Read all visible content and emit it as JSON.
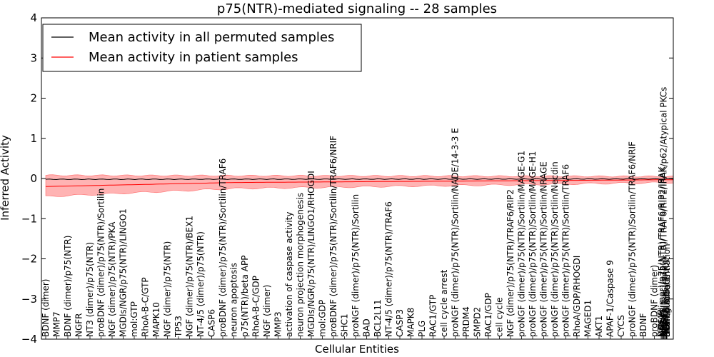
{
  "chart_data": {
    "type": "line",
    "title": "p75(NTR)-mediated signaling -- 28 samples",
    "xlabel": "Cellular Entities",
    "ylabel": "Inferred Activity",
    "ylim": [
      -4,
      4
    ],
    "yticks": [
      -4,
      -3,
      -2,
      -1,
      0,
      1,
      2,
      3,
      4
    ],
    "grid": false,
    "legend_position": "top-left",
    "categories": [
      "BDNF (dimer)",
      "MMP7",
      "BDNF (dimer)/p75(NTR)",
      "NGFR",
      "NT3 (dimer)/p75(NTR)",
      "proBDNF (dimer)/p75(NTR)/Sortilin",
      "NGF (dimer)/p75(NTR)/PKA",
      "MGDIs/NGR/p75(NTR)/LINGO1",
      "mol:GTP",
      "RhoA-B-C/GTP",
      "MAPK10",
      "NGF (dimer)/p75(NTR)",
      "TP53",
      "NGF (dimer)/p75(NTR)/BEX1",
      "NT-4/5 (dimer)/p75(NTR)",
      "CASP6",
      "proBDNF (dimer)/p75(NTR)/Sortilin/TRAF6",
      "neuron apoptosis",
      "p75(NTR)/beta APP",
      "RhoA-B-C/GDP",
      "NGF (dimer)",
      "MMP3",
      "activation of caspase activity",
      "neuron projection morphogenesis",
      "MGDIs/NGR/p75(NTR)/LINGO1/RHOGDI",
      "mol:GDP",
      "proBDNF (dimer)/p75(NTR)/Sortilin/TRAF6/NRIF",
      "SHC1",
      "proNGF (dimer)/p75(NTR)/Sortilin",
      "BAD",
      "BCL2L11",
      "NT-4/5 (dimer)/p75(NTR)/TRAF6",
      "CASP3",
      "MAPK8",
      "PLG",
      "RAC1/GTP",
      "cell cycle arrest",
      "proNGF (dimer)/p75(NTR)/Sortilin/NADE/14-3-3 E",
      "PRDM4",
      "SMPD2",
      "RAC1/GDP",
      "cell cycle",
      "NGF (dimer)/p75(NTR)/TRAF6/RIP2",
      "proNGF (dimer)/p75(NTR)/Sortilin/MAGE-G1",
      "proNGF (dimer)/p75(NTR)/Sortilin/MAGE-H1",
      "proNGF (dimer)/p75(NTR)/Sortilin/NRAGE",
      "proNGF (dimer)/p75(NTR)/Sortilin/Necdin",
      "proNGF (dimer)/p75(NTR)/Sortilin/TRAF6",
      "RhoA/GDP/RHOGDI",
      "MAGED1",
      "AKT1",
      "APAF-1/Caspase 9",
      "CYCS",
      "proNGF (dimer)/p75(NTR)/Sortilin/TRAF6/NRIF",
      "BDNF",
      "proBDNF (dimer)",
      "RTN4R",
      "NGF (dimer)/p75(NTR)/TRAF6/RIP2/IRAK",
      "NTRK1",
      "NGF (dimer)/p75(NTR)/TRAF6/RIP2/IRAK/p62/Atypical PKCs",
      "MAGEH1",
      "NTF3",
      "NGF (dimer)/TRKA",
      "neuron differentiation",
      "axon guidance",
      "SORT1",
      "NGF",
      "RIPK2",
      "IRAK1",
      "SQSTM1",
      "PRKCI",
      "PRKCZ",
      "axonogenesis",
      "negative regulation of axonogenesis",
      "neurite retraction",
      "TRAF6",
      "BEX1",
      "MAGEG1",
      "NDN",
      "NRIF",
      "YWHAE",
      "neuron death",
      "PKA",
      "LINGO1",
      "RhoA",
      "RAC1",
      "negative regulation of neuron apoptosis",
      "neurite growth",
      "LINGO1/RTN4R",
      "ARHGDIA",
      "p75(NTR)",
      "APP",
      "MAPK14",
      "MAG",
      "OMG",
      "RTN4",
      "programmed cell death",
      "myelin sheath",
      "Atypical PKCs",
      "positive regulation of axon extension",
      "cell growth",
      "RHOA",
      "SMPD3",
      "Ceramide",
      "regulation of apoptosis",
      "neurotrophin binding",
      "growth cone collapse",
      "Myelin-associated inhibitors",
      "axon regeneration",
      "RIP2",
      "IRAK",
      "p62",
      "PKC",
      "TRAF6/p62",
      "NF-kappa-B",
      "JNK cascade",
      "cell death",
      "neuron survival",
      "Sortilin",
      "Necdin",
      "NADE",
      "14-3-3 E",
      "MAGE-H1",
      "MAGE-G1",
      "NRAGE",
      "PRKACA",
      "PRKACB",
      "PRKAR1A",
      "PRKAR1B",
      "PRKAR2A",
      "PRKAR2B",
      "NGF signaling",
      "apoptosis",
      "Trk",
      "TrkA",
      "TrkB",
      "TrkC",
      "NT-4/5",
      "NT3",
      "proNGF",
      "proBDNF",
      "BEX1 complex",
      "LINGO1 complex",
      "NGR complex",
      "RHOGDI complex",
      "NRIF complex",
      "TRAF6 complex",
      "p62 complex",
      "IRAK complex",
      "RIP2 complex",
      "Atypical PKC complex",
      "Caspase 9",
      "APAF-1",
      "Cytochrome C",
      "BCL2",
      "BAX",
      "BID",
      "BIM",
      "PUMA",
      "NOXA",
      "MCL1",
      "XIAP",
      "survivin",
      "SMAC",
      "HTRA2",
      "AIF",
      "ENDOG",
      "ICAD",
      "CAD",
      "PARP1",
      "lamin A",
      "fodrin",
      "gelsolin",
      "ROCK1",
      "PAK2",
      "MST1",
      "hyperactivation"
    ],
    "visible_labels": [
      "BDNF (dimer)",
      "MMP7",
      "BDNF (dimer)/p75(NTR)",
      "NGFR",
      "NT3 (dimer)/p75(NTR)",
      "proBDNF (dimer)/p75(NTR)/Sortilin",
      "NGF (dimer)/p75(NTR)/PKA",
      "MGDIs/NGR/p75(NTR)/LINGO1",
      "mol:GTP",
      "RhoA-B-C/GTP",
      "MAPK10",
      "NGF (dimer)/p75(NTR)",
      "TP53",
      "NGF (dimer)/p75(NTR)/BEX1",
      "NT-4/5 (dimer)/p75(NTR)",
      "CASP6",
      "proBDNF (dimer)/p75(NTR)/Sortilin/TRAF6",
      "neuron apoptosis",
      "p75(NTR)/beta APP",
      "RhoA-B-C/GDP",
      "NGF (dimer)",
      "MMP3",
      "activation of caspase activity",
      "neuron projection morphogenesis",
      "MGDIs/NGR/p75(NTR)/LINGO1/RHOGDI",
      "mol:GDP",
      "proBDNF (dimer)/p75(NTR)/Sortilin/TRAF6/NRIF",
      "SHC1",
      "proNGF (dimer)/p75(NTR)/Sortilin",
      "BAD",
      "BCL2L11",
      "NT-4/5 (dimer)/p75(NTR)/TRAF6",
      "CASP3",
      "MAPK8",
      "PLG",
      "RAC1/GTP",
      "cell cycle arrest",
      "proNGF (dimer)/p75(NTR)/Sortilin/NADE/14-3-3 E",
      "PRDM4",
      "SMPD2",
      "RAC1/GDP",
      "cell cycle",
      "NGF (dimer)/p75(NTR)/TRAF6/RIP2",
      "proNGF (dimer)/p75(NTR)/Sortilin/MAGE-G1",
      "proNGF (dimer)/p75(NTR)/Sortilin/MAGE-H1",
      "proNGF (dimer)/p75(NTR)/Sortilin/NRAGE",
      "proNGF (dimer)/p75(NTR)/Sortilin/Necdin",
      "proNGF (dimer)/p75(NTR)/Sortilin/TRAF6",
      "RhoA/GDP/RHOGDI",
      "MAGED1",
      "AKT1",
      "APAF-1/Caspase 9",
      "CYCS",
      "proNGF (dimer)/p75(NTR)/Sortilin/TRAF6/NRIF",
      "BDNF",
      "proBDNF (dimer)",
      "RTN4R",
      "NGF (dimer)/p75(NTR)/TRAF6/RIP2/IRAK",
      "NTRK1",
      "NGF (dimer)/p75(NTR)/TRAF6/RIP2/IRAK/p62/Atypical PKCs",
      "MAGEH1",
      "NTF3",
      "NGF (dimer)/TRKA",
      "neuron differentiation",
      "axon guidance",
      "SORT1",
      "NGF"
    ],
    "series": [
      {
        "name": "Mean activity in all permuted samples",
        "color": "#000000",
        "values_start": -0.02,
        "values_end": -0.01
      },
      {
        "name": "Mean activity in patient samples",
        "color": "#ff0000",
        "band_color": "#ff9999",
        "start": -0.2,
        "mid": -0.1,
        "end": -0.03,
        "band_upper_start": 0.08,
        "band_lower_start": -0.45,
        "band_upper_end": 0.05,
        "band_lower_end": -0.1
      }
    ],
    "legend": [
      "Mean activity in all permuted samples",
      "Mean activity in patient samples"
    ]
  }
}
